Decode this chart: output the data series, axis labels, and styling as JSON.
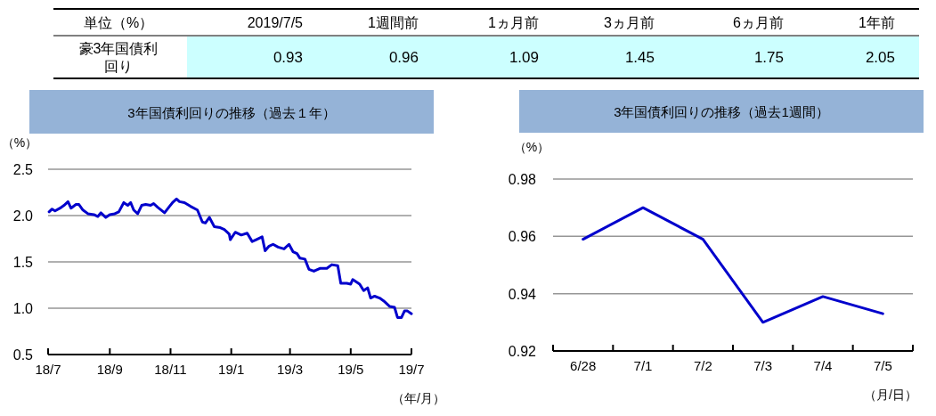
{
  "chart_data": [
    {
      "type": "other",
      "title": "単位（%）",
      "categories": [
        "2019/7/5",
        "1週間前",
        "1ヵ月前",
        "3ヵ月前",
        "6ヵ月前",
        "1年前"
      ],
      "series": [
        {
          "name": "豪3年国債利回り",
          "color": "#ccffff",
          "values": [
            0.93,
            0.96,
            1.09,
            1.45,
            1.75,
            2.05
          ]
        }
      ],
      "data_labels": true
    },
    {
      "type": "line",
      "title": "3年国債利回りの推移（過去１年）",
      "ylabel": "（%）",
      "xlabel": "（年/月）",
      "x": [
        "2018-07-02",
        "2018-07-05",
        "2018-07-08",
        "2018-07-13",
        "2018-07-17",
        "2018-07-21",
        "2018-07-24",
        "2018-07-29",
        "2018-08-01",
        "2018-08-05",
        "2018-08-10",
        "2018-08-16",
        "2018-08-20",
        "2018-08-23",
        "2018-08-28",
        "2018-09-01",
        "2018-09-06",
        "2018-09-10",
        "2018-09-15",
        "2018-09-19",
        "2018-09-22",
        "2018-09-25",
        "2018-09-29",
        "2018-10-03",
        "2018-10-07",
        "2018-10-12",
        "2018-10-15",
        "2018-10-19",
        "2018-10-26",
        "2018-10-31",
        "2018-11-03",
        "2018-11-07",
        "2018-11-10",
        "2018-11-15",
        "2018-11-21",
        "2018-11-28",
        "2018-12-03",
        "2018-12-06",
        "2018-12-10",
        "2018-12-15",
        "2018-12-21",
        "2018-12-25",
        "2018-12-30",
        "2018-12-31",
        "2019-01-05",
        "2019-01-11",
        "2019-01-17",
        "2019-01-22",
        "2019-01-26",
        "2019-02-01",
        "2019-02-04",
        "2019-02-08",
        "2019-02-12",
        "2019-02-17",
        "2019-02-23",
        "2019-02-28",
        "2019-03-04",
        "2019-03-08",
        "2019-03-11",
        "2019-03-16",
        "2019-03-20",
        "2019-03-25",
        "2019-03-31",
        "2019-04-07",
        "2019-04-12",
        "2019-04-18",
        "2019-04-21",
        "2019-04-27",
        "2019-05-01",
        "2019-05-03",
        "2019-05-10",
        "2019-05-14",
        "2019-05-18",
        "2019-05-21",
        "2019-05-25",
        "2019-05-30",
        "2019-06-03",
        "2019-06-09",
        "2019-06-14",
        "2019-06-17",
        "2019-06-21",
        "2019-06-24",
        "2019-06-27",
        "2019-07-01"
      ],
      "series": [
        {
          "color": "#0000cc",
          "values": [
            2.04,
            2.07,
            2.05,
            2.08,
            2.11,
            2.15,
            2.08,
            2.12,
            2.12,
            2.06,
            2.02,
            2.01,
            1.99,
            2.03,
            1.98,
            2.01,
            2.02,
            2.04,
            2.14,
            2.11,
            2.14,
            2.06,
            2.02,
            2.11,
            2.12,
            2.11,
            2.13,
            2.09,
            2.03,
            2.1,
            2.14,
            2.18,
            2.15,
            2.14,
            2.1,
            2.06,
            1.93,
            1.92,
            1.98,
            1.88,
            1.87,
            1.85,
            1.8,
            1.74,
            1.82,
            1.79,
            1.81,
            1.72,
            1.74,
            1.77,
            1.62,
            1.67,
            1.69,
            1.66,
            1.64,
            1.69,
            1.61,
            1.59,
            1.54,
            1.53,
            1.42,
            1.4,
            1.43,
            1.43,
            1.47,
            1.46,
            1.27,
            1.27,
            1.26,
            1.31,
            1.26,
            1.19,
            1.22,
            1.11,
            1.13,
            1.11,
            1.08,
            1.02,
            1.01,
            0.9,
            0.9,
            0.97,
            0.97,
            0.94
          ]
        }
      ],
      "xlim": [
        "2018-07-01",
        "2019-07-01"
      ],
      "xticks": [
        {
          "value": "2018-07-01",
          "label": "18/7"
        },
        {
          "value": "2018-09-01",
          "label": "18/9"
        },
        {
          "value": "2018-11-01",
          "label": "18/11"
        },
        {
          "value": "2019-01-01",
          "label": "19/1"
        },
        {
          "value": "2019-03-01",
          "label": "19/3"
        },
        {
          "value": "2019-05-01",
          "label": "19/5"
        },
        {
          "value": "2019-07-01",
          "label": "19/7"
        }
      ],
      "ylim": [
        0.5,
        2.5
      ],
      "yticks": [
        0.5,
        {
          "value": 1,
          "label": "1.0"
        },
        1.5,
        {
          "value": 2,
          "label": "2.0"
        },
        2.5
      ],
      "grid": "y",
      "line_style": "solid"
    },
    {
      "type": "line",
      "title": "3年国債利回りの推移（過去1週間）",
      "ylabel": "（%）",
      "xlabel": "（月/日）",
      "categories": [
        "6/28",
        "7/1",
        "7/2",
        "7/3",
        "7/4",
        "7/5"
      ],
      "series": [
        {
          "color": "#0000cc",
          "values": [
            0.959,
            0.97,
            0.959,
            0.93,
            0.939,
            0.933
          ]
        }
      ],
      "ylim": [
        0.92,
        0.98
      ],
      "yticks": [
        0.92,
        0.94,
        0.96,
        0.98
      ],
      "grid": "y",
      "line_style": "solid"
    }
  ]
}
